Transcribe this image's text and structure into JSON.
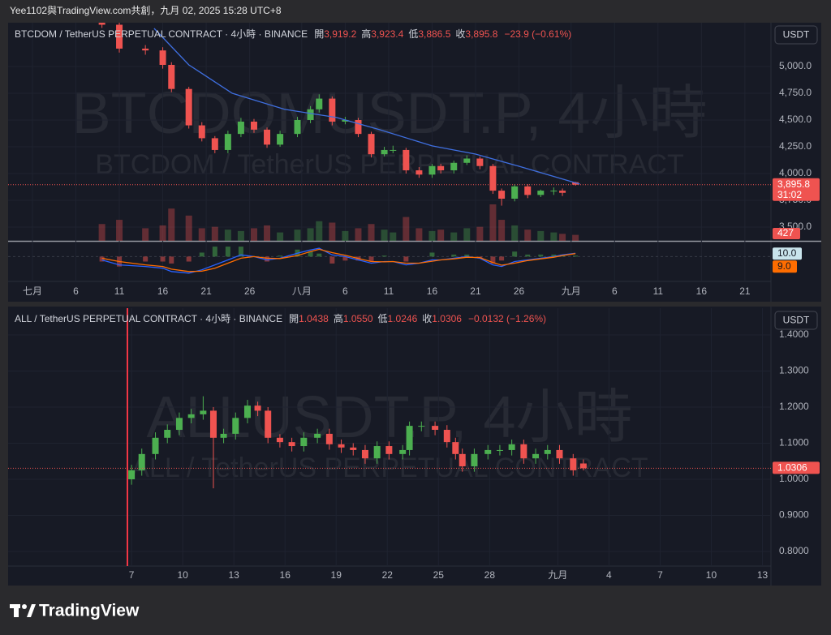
{
  "header": {
    "text": "Yee1102與TradingView.com共創，九月 02, 2025 15:28 UTC+8"
  },
  "footer": {
    "brand": "TradingView"
  },
  "chart_data": [
    {
      "type": "candlestick",
      "title": "BTCDOM / TetherUS PERPETUAL CONTRACT · 4小時 · BINANCE",
      "legend": [
        [
          "開",
          "3,919.2"
        ],
        [
          "高",
          "3,923.4"
        ],
        [
          "低",
          "3,886.5"
        ],
        [
          "收",
          "3,895.8"
        ]
      ],
      "change": "−23.9 (−0.61%)",
      "currency": "USDT",
      "watermark": [
        "BTCDOMUSDT.P, 4小時",
        "BTCDOM / TetherUS PERPETUAL CONTRACT"
      ],
      "up_color": "#4caf50",
      "down_color": "#ef5350",
      "xlim": [
        -2.8,
        85
      ],
      "xticks": [
        {
          "value": 0,
          "label": "七月"
        },
        {
          "value": 5,
          "label": "6"
        },
        {
          "value": 10,
          "label": "11"
        },
        {
          "value": 15,
          "label": "16"
        },
        {
          "value": 20,
          "label": "21"
        },
        {
          "value": 25,
          "label": "26"
        },
        {
          "value": 31,
          "label": "八月"
        },
        {
          "value": 36,
          "label": "6"
        },
        {
          "value": 41,
          "label": "11"
        },
        {
          "value": 46,
          "label": "16"
        },
        {
          "value": 51,
          "label": "21"
        },
        {
          "value": 56,
          "label": "26"
        },
        {
          "value": 62,
          "label": "九月"
        },
        {
          "value": 67,
          "label": "6"
        },
        {
          "value": 72,
          "label": "11"
        },
        {
          "value": 77,
          "label": "16"
        },
        {
          "value": 82,
          "label": "21"
        }
      ],
      "ylim": [
        3371,
        5409
      ],
      "yticks": [
        {
          "value": 3500,
          "label": "3,500.0"
        },
        {
          "value": 3750,
          "label": "3,750.0"
        },
        {
          "value": 4000,
          "label": "4,000.0"
        },
        {
          "value": 4250,
          "label": "4,250.0"
        },
        {
          "value": 4500,
          "label": "4,500.0"
        },
        {
          "value": 4750,
          "label": "4,750.0"
        },
        {
          "value": 5000,
          "label": "5,000.0"
        }
      ],
      "x": [
        8,
        10,
        13,
        15,
        16,
        18,
        19.5,
        21,
        22.5,
        24,
        25.5,
        27,
        28.5,
        30.5,
        32,
        33,
        34.5,
        36,
        37.5,
        39,
        40.5,
        41.5,
        43,
        44.5,
        46,
        47,
        48.5,
        50,
        51.5,
        53,
        54,
        55.5,
        57,
        58.5,
        60,
        61,
        62.5
      ],
      "open": [
        5450,
        5390,
        5167,
        5150,
        5015,
        4790,
        4450,
        4330,
        4220,
        4370,
        4485,
        4410,
        4270,
        4370,
        4500,
        4600,
        4700,
        4485,
        4500,
        4370,
        4180,
        4220,
        4220,
        4030,
        3990,
        4070,
        4030,
        4100,
        4140,
        4070,
        3840,
        3765,
        3880,
        3800,
        3840,
        3840,
        3919.2
      ],
      "high": [
        5480,
        5420,
        5200,
        5180,
        5040,
        4810,
        4480,
        4350,
        4400,
        4520,
        4510,
        4430,
        4400,
        4530,
        4630,
        4740,
        4720,
        4530,
        4520,
        4390,
        4250,
        4260,
        4240,
        4060,
        4090,
        4090,
        4120,
        4170,
        4160,
        4090,
        3860,
        3900,
        3900,
        3850,
        3870,
        3860,
        3923.4
      ],
      "low": [
        5360,
        5130,
        5110,
        4980,
        4760,
        4420,
        4300,
        4190,
        4190,
        4340,
        4380,
        4240,
        4250,
        4340,
        4470,
        4570,
        4450,
        4460,
        4340,
        4150,
        4160,
        4190,
        4000,
        3960,
        3960,
        4000,
        4000,
        4080,
        4040,
        3810,
        3700,
        3740,
        3770,
        3780,
        3800,
        3790,
        3886.5
      ],
      "close": [
        5390,
        5167,
        5150,
        5015,
        4790,
        4450,
        4330,
        4220,
        4370,
        4485,
        4410,
        4270,
        4370,
        4500,
        4600,
        4700,
        4485,
        4500,
        4370,
        4180,
        4220,
        4220,
        4030,
        3990,
        4070,
        4030,
        4100,
        4140,
        4070,
        3840,
        3765,
        3880,
        3800,
        3840,
        3840,
        3820,
        3895.8
      ],
      "last_label": "3,895.8",
      "countdown": "31:02",
      "ma": {
        "color": "#3f6fe0",
        "x": [
          14,
          18,
          23,
          29,
          35,
          40,
          46,
          51,
          56,
          63
        ],
        "values": [
          5356,
          5015,
          4750,
          4600,
          4523,
          4409,
          4258,
          4182,
          4068,
          3901
        ]
      },
      "volume": [
        1200,
        1500,
        900,
        1100,
        2300,
        1800,
        900,
        1000,
        800,
        700,
        900,
        1100,
        600,
        800,
        900,
        1400,
        1300,
        700,
        900,
        1200,
        800,
        600,
        1700,
        900,
        700,
        800,
        600,
        900,
        1000,
        2600,
        1500,
        1100,
        800,
        700,
        600,
        500,
        427
      ],
      "macd_ylim": [
        -70,
        40
      ],
      "macd": {
        "color": "#2962ff",
        "last_label": "10.0",
        "values": [
          -10,
          -25,
          -30,
          -35,
          -45,
          -50,
          -40,
          -25,
          -10,
          5,
          0,
          -10,
          -5,
          10,
          20,
          25,
          5,
          0,
          -10,
          -20,
          -15,
          -15,
          -25,
          -20,
          -10,
          -10,
          -5,
          0,
          -5,
          -25,
          -30,
          -15,
          -10,
          -5,
          0,
          5,
          10
        ]
      },
      "signal": {
        "color": "#ff6d00",
        "last_label": "9.0",
        "values": [
          -5,
          -15,
          -25,
          -30,
          -38,
          -45,
          -44,
          -35,
          -20,
          -5,
          0,
          -5,
          -6,
          3,
          15,
          22,
          12,
          4,
          -6,
          -15,
          -16,
          -15,
          -20,
          -20,
          -14,
          -10,
          -7,
          -2,
          -3,
          -18,
          -26,
          -20,
          -12,
          -7,
          -2,
          3,
          9
        ]
      }
    },
    {
      "type": "candlestick",
      "title": "ALL / TetherUS PERPETUAL CONTRACT · 4小時 · BINANCE",
      "legend": [
        [
          "開",
          "1.0438"
        ],
        [
          "高",
          "1.0550"
        ],
        [
          "低",
          "1.0246"
        ],
        [
          "收",
          "1.0306"
        ]
      ],
      "change": "−0.0132 (−1.26%)",
      "currency": "USDT",
      "watermark": [
        "ALLUSDT.P, 4小時",
        "ALL / TetherUS PERPETUAL CONTRACT"
      ],
      "up_color": "#4caf50",
      "down_color": "#ef5350",
      "xlim": [
        -1.24,
        43.5
      ],
      "xticks": [
        {
          "value": 6,
          "label": "7"
        },
        {
          "value": 9,
          "label": "10"
        },
        {
          "value": 12,
          "label": "13"
        },
        {
          "value": 15,
          "label": "16"
        },
        {
          "value": 18,
          "label": "19"
        },
        {
          "value": 21,
          "label": "22"
        },
        {
          "value": 24,
          "label": "25"
        },
        {
          "value": 27,
          "label": "28"
        },
        {
          "value": 31,
          "label": "九月"
        },
        {
          "value": 34,
          "label": "4"
        },
        {
          "value": 37,
          "label": "7"
        },
        {
          "value": 40,
          "label": "10"
        },
        {
          "value": 43,
          "label": "13"
        }
      ],
      "ylim": [
        0.7596,
        1.474
      ],
      "yticks": [
        {
          "value": 0.8,
          "label": "0.8000"
        },
        {
          "value": 0.9,
          "label": "0.9000"
        },
        {
          "value": 1,
          "label": "1.0000"
        },
        {
          "value": 1.1,
          "label": "1.1000"
        },
        {
          "value": 1.2,
          "label": "1.2000"
        },
        {
          "value": 1.3,
          "label": "1.3000"
        },
        {
          "value": 1.4,
          "label": "1.4000"
        }
      ],
      "x": [
        6,
        6.6,
        7.4,
        8.1,
        8.8,
        9.5,
        10.2,
        10.8,
        11.4,
        12.1,
        12.8,
        13.4,
        14,
        14.7,
        15.4,
        16.1,
        16.9,
        17.6,
        18.3,
        19,
        19.7,
        20.4,
        21.1,
        21.9,
        22.3,
        23,
        23.8,
        24.5,
        25,
        25.4,
        26.1,
        26.9,
        27.6,
        28.3,
        29,
        29.7,
        30.4,
        31.1,
        31.9,
        32.5
      ],
      "open": [
        1.0,
        1.025,
        1.07,
        1.115,
        1.137,
        1.17,
        1.18,
        1.19,
        1.115,
        1.126,
        1.17,
        1.204,
        1.19,
        1.115,
        1.103,
        1.092,
        1.115,
        1.126,
        1.097,
        1.088,
        1.081,
        1.058,
        1.092,
        1.07,
        1.081,
        1.148,
        1.148,
        1.137,
        1.103,
        1.07,
        1.036,
        1.07,
        1.081,
        1.081,
        1.097,
        1.058,
        1.07,
        1.081,
        1.058,
        1.0438
      ],
      "high": [
        1.04,
        1.085,
        1.13,
        1.152,
        1.185,
        1.195,
        1.23,
        1.2,
        1.14,
        1.185,
        1.22,
        1.215,
        1.2,
        1.125,
        1.115,
        1.13,
        1.14,
        1.14,
        1.11,
        1.1,
        1.095,
        1.105,
        1.105,
        1.095,
        1.16,
        1.16,
        1.16,
        1.15,
        1.115,
        1.085,
        1.085,
        1.095,
        1.095,
        1.11,
        1.11,
        1.085,
        1.095,
        1.095,
        1.07,
        1.055
      ],
      "low": [
        0.985,
        1.01,
        1.055,
        1.1,
        1.122,
        1.155,
        1.165,
        0.975,
        1.1,
        1.11,
        1.155,
        1.175,
        1.1,
        1.088,
        1.077,
        1.077,
        1.1,
        1.082,
        1.073,
        1.066,
        1.043,
        1.043,
        1.055,
        1.055,
        1.066,
        1.133,
        1.122,
        1.088,
        1.055,
        1.021,
        1.021,
        1.055,
        1.066,
        1.066,
        1.043,
        1.043,
        1.055,
        1.043,
        1.01,
        1.0246
      ],
      "close": [
        1.025,
        1.07,
        1.115,
        1.137,
        1.17,
        1.18,
        1.19,
        1.115,
        1.126,
        1.17,
        1.204,
        1.19,
        1.115,
        1.103,
        1.092,
        1.115,
        1.126,
        1.097,
        1.088,
        1.081,
        1.058,
        1.092,
        1.07,
        1.081,
        1.148,
        1.148,
        1.137,
        1.103,
        1.07,
        1.036,
        1.07,
        1.081,
        1.081,
        1.097,
        1.058,
        1.07,
        1.081,
        1.058,
        1.025,
        1.0306
      ],
      "last_label": "1.0306"
    }
  ]
}
